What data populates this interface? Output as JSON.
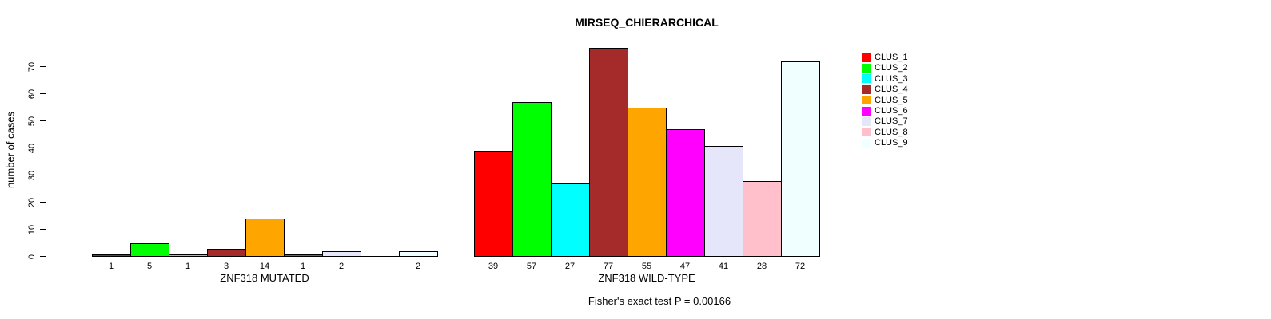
{
  "figure": {
    "title": "MIRSEQ_CHIERARCHICAL",
    "footer": "Fisher's exact test P = 0.00166"
  },
  "chart_data": {
    "type": "bar",
    "title": "MIRSEQ_CHIERARCHICAL",
    "ylabel": "number of cases",
    "xlabel": "",
    "yticks": [
      0,
      10,
      20,
      30,
      40,
      50,
      60,
      70
    ],
    "ylim": [
      0,
      77
    ],
    "grid": false,
    "legend_position": "top-right",
    "legend": [
      {
        "name": "CLUS_1",
        "color": "#FF0000"
      },
      {
        "name": "CLUS_2",
        "color": "#00FF00"
      },
      {
        "name": "CLUS_3",
        "color": "#00FFFF"
      },
      {
        "name": "CLUS_4",
        "color": "#A52A2A"
      },
      {
        "name": "CLUS_5",
        "color": "#FFA500"
      },
      {
        "name": "CLUS_6",
        "color": "#FF00FF"
      },
      {
        "name": "CLUS_7",
        "color": "#E6E6FA"
      },
      {
        "name": "CLUS_8",
        "color": "#FFC0CB"
      },
      {
        "name": "CLUS_9",
        "color": "#F0FFFF"
      }
    ],
    "groups": [
      {
        "label": "ZNF318 MUTATED",
        "values": [
          1,
          5,
          1,
          3,
          14,
          1,
          2,
          0,
          2
        ],
        "bar_labels": [
          "1",
          "5",
          "1",
          "3",
          "14",
          "1",
          "2",
          "",
          "2"
        ]
      },
      {
        "label": "ZNF318 WILD-TYPE",
        "values": [
          39,
          57,
          27,
          77,
          55,
          47,
          41,
          28,
          72
        ],
        "bar_labels": [
          "39",
          "57",
          "27",
          "77",
          "55",
          "47",
          "41",
          "28",
          "72"
        ]
      }
    ],
    "annotation": "Fisher's exact test P = 0.00166"
  }
}
